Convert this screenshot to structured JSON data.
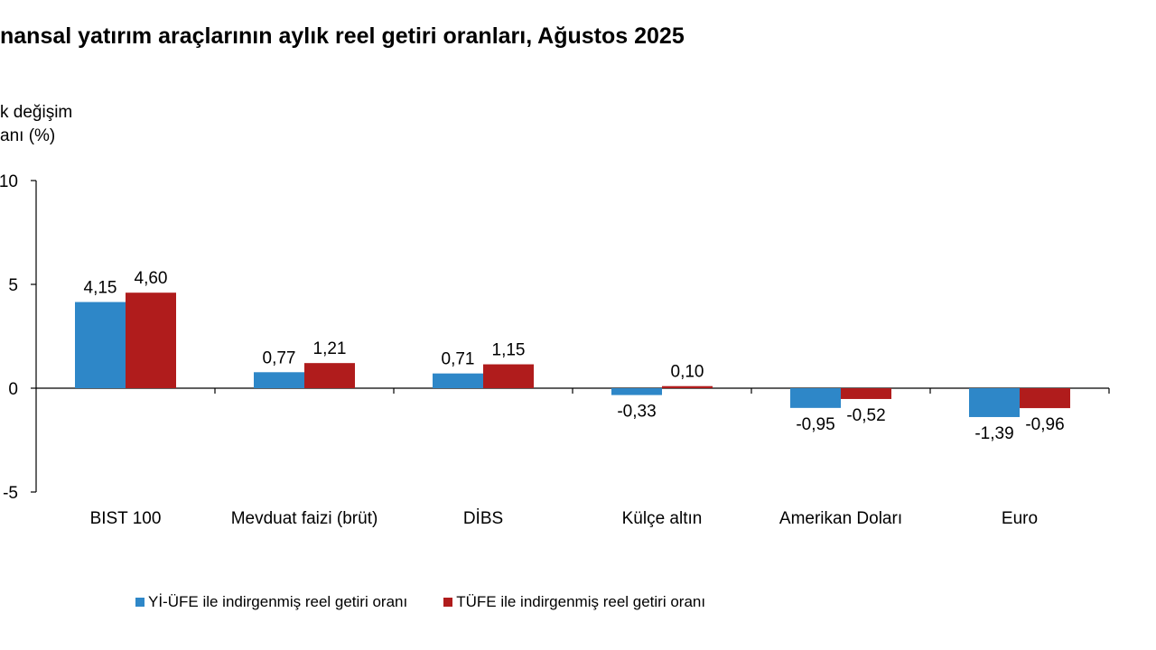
{
  "chart_data": {
    "type": "bar",
    "title": "nansal yatırım araçlarının aylık reel getiri oranları, Ağustos 2025",
    "ylabel_lines": [
      "k değişim",
      "anı (%)"
    ],
    "xlabel": "",
    "ylim": [
      -5,
      10
    ],
    "yticks": [
      {
        "value": 10,
        "label": "10"
      },
      {
        "value": 5,
        "label": "5"
      },
      {
        "value": 0,
        "label": "0"
      },
      {
        "value": -5,
        "label": "-5"
      }
    ],
    "categories": [
      "BIST 100",
      "Mevduat faizi (brüt)",
      "DİBS",
      "Külçe altın",
      "Amerikan Doları",
      "Euro"
    ],
    "series": [
      {
        "name": "Yİ-ÜFE ile indirgenmiş reel getiri oranı",
        "color": "#2e87c8",
        "values": [
          4.15,
          0.77,
          0.71,
          -0.33,
          -0.95,
          -1.39
        ],
        "labels": [
          "4,15",
          "0,77",
          "0,71",
          "-0,33",
          "-0,95",
          "-1,39"
        ]
      },
      {
        "name": "TÜFE ile indirgenmiş reel getiri oranı",
        "color": "#b01c1c",
        "values": [
          4.6,
          1.21,
          1.15,
          0.1,
          -0.52,
          -0.96
        ],
        "labels": [
          "4,60",
          "1,21",
          "1,15",
          "0,10",
          "-0,52",
          "-0,96"
        ]
      }
    ],
    "grid": false,
    "legend_position": "bottom"
  }
}
